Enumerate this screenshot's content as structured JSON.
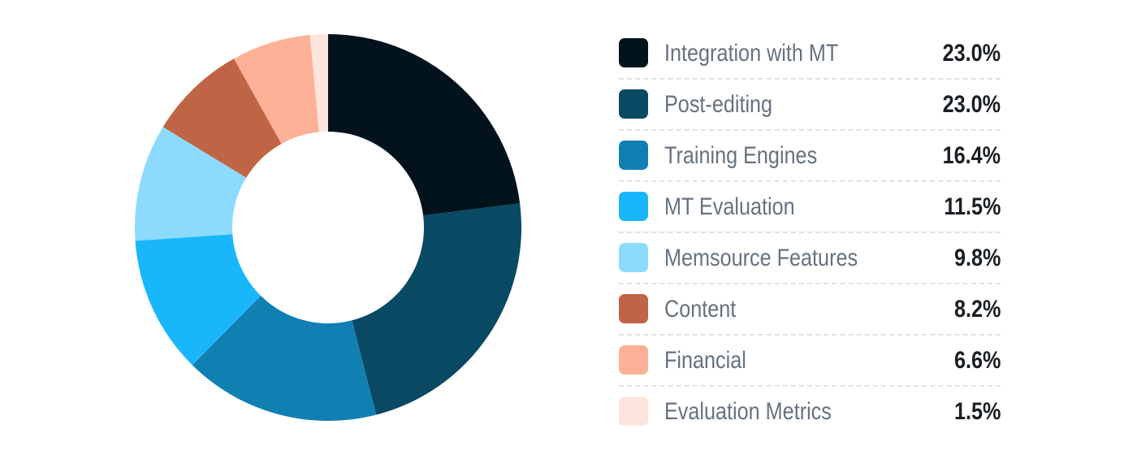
{
  "chart_data": {
    "type": "pie",
    "donut": true,
    "title": "",
    "legend_position": "right",
    "slices": [
      {
        "label": "Integration with MT",
        "value": 23.0,
        "display": "23.0%",
        "color": "#02131c"
      },
      {
        "label": "Post-editing",
        "value": 23.0,
        "display": "23.0%",
        "color": "#094963"
      },
      {
        "label": "Training Engines",
        "value": 16.4,
        "display": "16.4%",
        "color": "#1080b3"
      },
      {
        "label": "MT Evaluation",
        "value": 11.5,
        "display": "11.5%",
        "color": "#1ab6fc"
      },
      {
        "label": "Memsource Features",
        "value": 9.8,
        "display": "9.8%",
        "color": "#8cdbff"
      },
      {
        "label": "Content",
        "value": 8.2,
        "display": "8.2%",
        "color": "#bf6444"
      },
      {
        "label": "Financial",
        "value": 6.6,
        "display": "6.6%",
        "color": "#fdb196"
      },
      {
        "label": "Evaluation Metrics",
        "value": 1.5,
        "display": "1.5%",
        "color": "#fde5de"
      }
    ]
  }
}
